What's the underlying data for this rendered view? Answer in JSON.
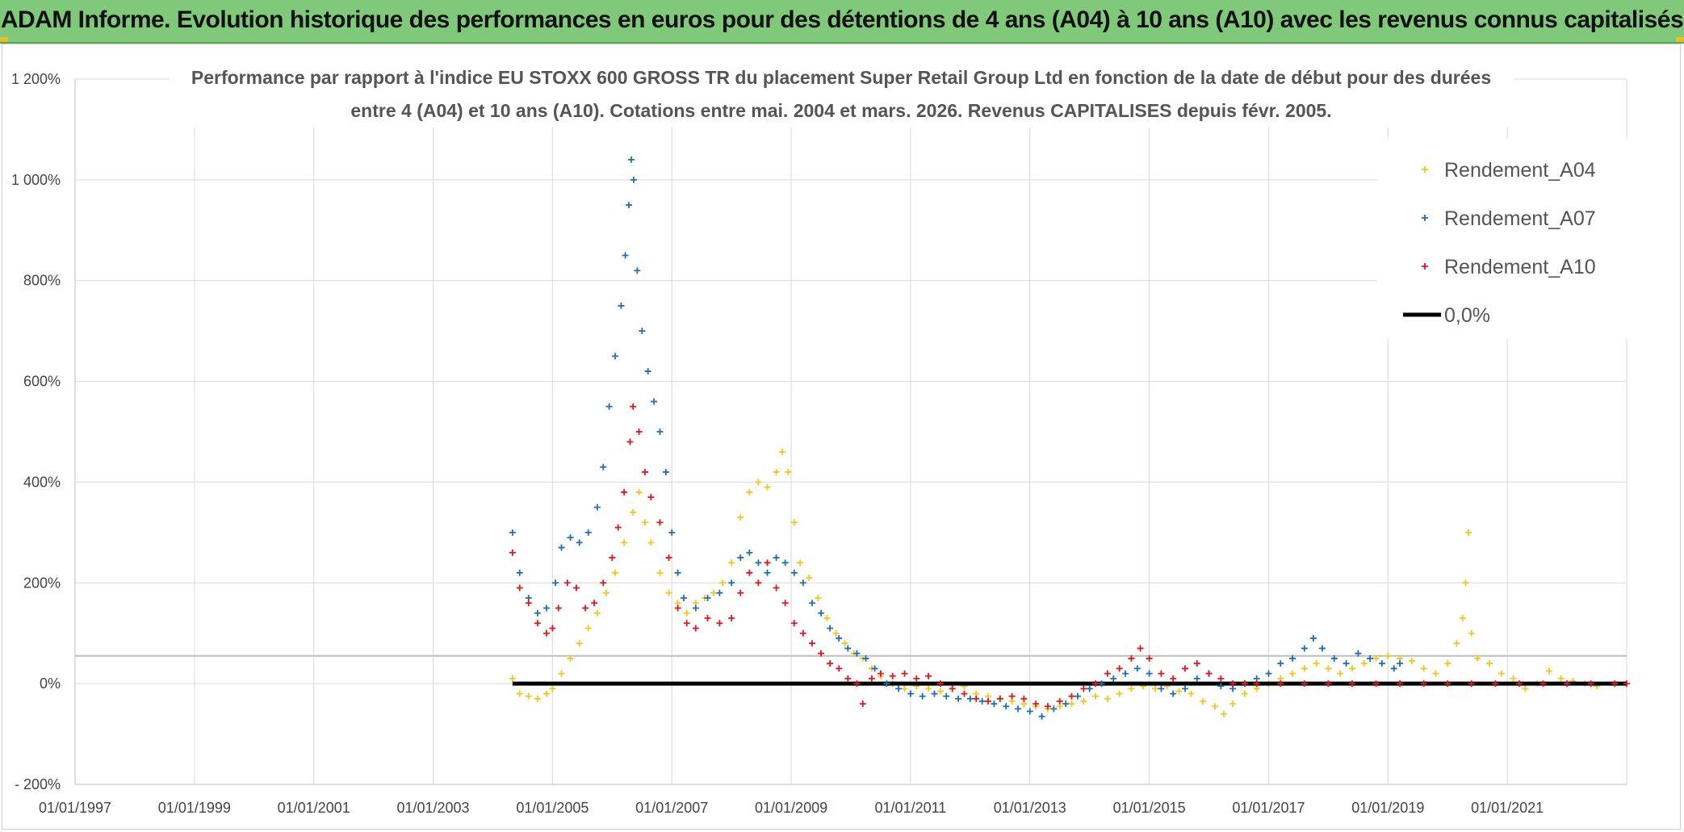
{
  "header": {
    "title": "ADAM Informe. Evolution historique des performances en euros pour des détentions de 4 ans (A04) à 10 ans (A10) avec les revenus connus capitalisés"
  },
  "chart_data": {
    "type": "scatter",
    "title_line1": "Performance par rapport à l'indice EU STOXX 600 GROSS TR  du placement Super Retail Group Ltd en fonction de la date de début pour des durées",
    "title_line2": "entre 4 (A04) et 10 ans (A10). Cotations entre mai. 2004 et mars. 2026. Revenus CAPITALISES depuis févr. 2005.",
    "xlim": [
      1997.0,
      2023.0
    ],
    "ylim": [
      -200,
      1200
    ],
    "y_ticks": [
      -200,
      0,
      200,
      400,
      600,
      800,
      1000,
      1200
    ],
    "y_tick_labels": [
      "- 200%",
      "0%",
      "200%",
      "400%",
      "600%",
      "800%",
      "1 000%",
      "1 200%"
    ],
    "x_ticks": [
      1997,
      1999,
      2001,
      2003,
      2005,
      2007,
      2009,
      2011,
      2013,
      2015,
      2017,
      2019,
      2021
    ],
    "x_tick_labels": [
      "01/01/1997",
      "01/01/1999",
      "01/01/2001",
      "01/01/2003",
      "01/01/2005",
      "01/01/2007",
      "01/01/2009",
      "01/01/2011",
      "01/01/2013",
      "01/01/2015",
      "01/01/2017",
      "01/01/2019",
      "01/01/2021"
    ],
    "extra_hline": 55,
    "grid": true,
    "legend_position": "top-right",
    "series": [
      {
        "name": "Rendement_A04",
        "color": "#f5c518",
        "marker": "+",
        "points": [
          [
            2004.33,
            10
          ],
          [
            2004.45,
            -20
          ],
          [
            2004.6,
            -25
          ],
          [
            2004.75,
            -30
          ],
          [
            2004.9,
            -20
          ],
          [
            2005.0,
            -10
          ],
          [
            2005.15,
            20
          ],
          [
            2005.3,
            50
          ],
          [
            2005.45,
            80
          ],
          [
            2005.6,
            110
          ],
          [
            2005.75,
            140
          ],
          [
            2005.9,
            180
          ],
          [
            2006.05,
            220
          ],
          [
            2006.2,
            280
          ],
          [
            2006.35,
            340
          ],
          [
            2006.45,
            380
          ],
          [
            2006.55,
            320
          ],
          [
            2006.65,
            280
          ],
          [
            2006.8,
            220
          ],
          [
            2006.95,
            180
          ],
          [
            2007.1,
            160
          ],
          [
            2007.25,
            140
          ],
          [
            2007.4,
            160
          ],
          [
            2007.55,
            170
          ],
          [
            2007.7,
            180
          ],
          [
            2007.85,
            200
          ],
          [
            2008.0,
            240
          ],
          [
            2008.15,
            330
          ],
          [
            2008.3,
            380
          ],
          [
            2008.45,
            400
          ],
          [
            2008.6,
            390
          ],
          [
            2008.75,
            420
          ],
          [
            2008.85,
            460
          ],
          [
            2008.95,
            420
          ],
          [
            2009.05,
            320
          ],
          [
            2009.15,
            240
          ],
          [
            2009.3,
            210
          ],
          [
            2009.45,
            170
          ],
          [
            2009.6,
            130
          ],
          [
            2009.75,
            100
          ],
          [
            2009.9,
            80
          ],
          [
            2010.05,
            60
          ],
          [
            2010.2,
            50
          ],
          [
            2010.35,
            30
          ],
          [
            2010.5,
            15
          ],
          [
            2010.7,
            0
          ],
          [
            2010.9,
            -10
          ],
          [
            2011.1,
            -5
          ],
          [
            2011.3,
            -10
          ],
          [
            2011.5,
            -15
          ],
          [
            2011.7,
            -10
          ],
          [
            2011.9,
            -5
          ],
          [
            2012.1,
            -20
          ],
          [
            2012.3,
            -25
          ],
          [
            2012.5,
            -30
          ],
          [
            2012.7,
            -35
          ],
          [
            2012.9,
            -40
          ],
          [
            2013.1,
            -45
          ],
          [
            2013.3,
            -50
          ],
          [
            2013.5,
            -45
          ],
          [
            2013.7,
            -40
          ],
          [
            2013.9,
            -35
          ],
          [
            2014.1,
            -25
          ],
          [
            2014.3,
            -30
          ],
          [
            2014.5,
            -20
          ],
          [
            2014.7,
            -10
          ],
          [
            2014.9,
            -5
          ],
          [
            2015.1,
            -10
          ],
          [
            2015.3,
            -5
          ],
          [
            2015.5,
            -15
          ],
          [
            2015.7,
            -20
          ],
          [
            2015.9,
            -35
          ],
          [
            2016.1,
            -45
          ],
          [
            2016.25,
            -60
          ],
          [
            2016.4,
            -40
          ],
          [
            2016.6,
            -20
          ],
          [
            2016.8,
            -10
          ],
          [
            2017.0,
            0
          ],
          [
            2017.2,
            10
          ],
          [
            2017.4,
            20
          ],
          [
            2017.6,
            30
          ],
          [
            2017.8,
            40
          ],
          [
            2018.0,
            30
          ],
          [
            2018.2,
            20
          ],
          [
            2018.4,
            30
          ],
          [
            2018.6,
            40
          ],
          [
            2018.8,
            50
          ],
          [
            2019.0,
            55
          ],
          [
            2019.2,
            50
          ],
          [
            2019.4,
            45
          ],
          [
            2019.6,
            30
          ],
          [
            2019.8,
            20
          ],
          [
            2020.0,
            40
          ],
          [
            2020.15,
            80
          ],
          [
            2020.25,
            130
          ],
          [
            2020.3,
            200
          ],
          [
            2020.35,
            300
          ],
          [
            2020.4,
            100
          ],
          [
            2020.5,
            50
          ],
          [
            2020.7,
            40
          ],
          [
            2020.9,
            20
          ],
          [
            2021.1,
            10
          ],
          [
            2021.3,
            -10
          ],
          [
            2021.5,
            0
          ],
          [
            2021.7,
            25
          ],
          [
            2021.9,
            10
          ],
          [
            2022.1,
            5
          ],
          [
            2022.3,
            0
          ],
          [
            2022.5,
            -5
          ]
        ]
      },
      {
        "name": "Rendement_A07",
        "color": "#1f6fb5",
        "marker": "+",
        "points": [
          [
            2004.33,
            300
          ],
          [
            2004.45,
            220
          ],
          [
            2004.6,
            170
          ],
          [
            2004.75,
            140
          ],
          [
            2004.9,
            150
          ],
          [
            2005.05,
            200
          ],
          [
            2005.15,
            270
          ],
          [
            2005.3,
            290
          ],
          [
            2005.45,
            280
          ],
          [
            2005.6,
            300
          ],
          [
            2005.75,
            350
          ],
          [
            2005.85,
            430
          ],
          [
            2005.95,
            550
          ],
          [
            2006.05,
            650
          ],
          [
            2006.15,
            750
          ],
          [
            2006.22,
            850
          ],
          [
            2006.28,
            950
          ],
          [
            2006.32,
            1040
          ],
          [
            2006.36,
            1000
          ],
          [
            2006.42,
            820
          ],
          [
            2006.5,
            700
          ],
          [
            2006.6,
            620
          ],
          [
            2006.7,
            560
          ],
          [
            2006.8,
            500
          ],
          [
            2006.9,
            420
          ],
          [
            2007.0,
            300
          ],
          [
            2007.1,
            220
          ],
          [
            2007.2,
            170
          ],
          [
            2007.4,
            150
          ],
          [
            2007.6,
            170
          ],
          [
            2007.8,
            180
          ],
          [
            2008.0,
            200
          ],
          [
            2008.15,
            250
          ],
          [
            2008.3,
            260
          ],
          [
            2008.45,
            240
          ],
          [
            2008.6,
            220
          ],
          [
            2008.75,
            250
          ],
          [
            2008.9,
            240
          ],
          [
            2009.05,
            220
          ],
          [
            2009.2,
            200
          ],
          [
            2009.35,
            160
          ],
          [
            2009.5,
            140
          ],
          [
            2009.65,
            110
          ],
          [
            2009.8,
            90
          ],
          [
            2009.95,
            70
          ],
          [
            2010.1,
            60
          ],
          [
            2010.25,
            50
          ],
          [
            2010.4,
            30
          ],
          [
            2010.6,
            0
          ],
          [
            2010.8,
            -10
          ],
          [
            2011.0,
            -20
          ],
          [
            2011.2,
            -25
          ],
          [
            2011.4,
            -20
          ],
          [
            2011.6,
            -25
          ],
          [
            2011.8,
            -30
          ],
          [
            2012.0,
            -30
          ],
          [
            2012.2,
            -35
          ],
          [
            2012.4,
            -40
          ],
          [
            2012.6,
            -45
          ],
          [
            2012.8,
            -50
          ],
          [
            2013.0,
            -55
          ],
          [
            2013.2,
            -65
          ],
          [
            2013.4,
            -50
          ],
          [
            2013.6,
            -40
          ],
          [
            2013.8,
            -25
          ],
          [
            2014.0,
            -10
          ],
          [
            2014.2,
            0
          ],
          [
            2014.4,
            10
          ],
          [
            2014.6,
            20
          ],
          [
            2014.8,
            30
          ],
          [
            2015.0,
            20
          ],
          [
            2015.2,
            -10
          ],
          [
            2015.4,
            -20
          ],
          [
            2015.6,
            -10
          ],
          [
            2015.8,
            10
          ],
          [
            2016.0,
            20
          ],
          [
            2016.2,
            -5
          ],
          [
            2016.4,
            -10
          ],
          [
            2016.6,
            0
          ],
          [
            2016.8,
            10
          ],
          [
            2017.0,
            20
          ],
          [
            2017.2,
            40
          ],
          [
            2017.4,
            50
          ],
          [
            2017.6,
            70
          ],
          [
            2017.75,
            90
          ],
          [
            2017.9,
            70
          ],
          [
            2018.1,
            50
          ],
          [
            2018.3,
            40
          ],
          [
            2018.5,
            60
          ],
          [
            2018.7,
            50
          ],
          [
            2018.9,
            40
          ],
          [
            2019.1,
            30
          ],
          [
            2019.2,
            40
          ]
        ]
      },
      {
        "name": "Rendement_A10",
        "color": "#e8141c",
        "marker": "+",
        "points": [
          [
            2004.33,
            260
          ],
          [
            2004.45,
            190
          ],
          [
            2004.6,
            160
          ],
          [
            2004.75,
            120
          ],
          [
            2004.9,
            100
          ],
          [
            2005.0,
            110
          ],
          [
            2005.1,
            150
          ],
          [
            2005.25,
            200
          ],
          [
            2005.4,
            190
          ],
          [
            2005.55,
            150
          ],
          [
            2005.7,
            160
          ],
          [
            2005.85,
            200
          ],
          [
            2006.0,
            250
          ],
          [
            2006.1,
            310
          ],
          [
            2006.2,
            380
          ],
          [
            2006.3,
            480
          ],
          [
            2006.35,
            550
          ],
          [
            2006.45,
            500
          ],
          [
            2006.55,
            420
          ],
          [
            2006.65,
            370
          ],
          [
            2006.8,
            320
          ],
          [
            2006.95,
            250
          ],
          [
            2007.1,
            150
          ],
          [
            2007.25,
            120
          ],
          [
            2007.4,
            110
          ],
          [
            2007.6,
            130
          ],
          [
            2007.8,
            120
          ],
          [
            2008.0,
            130
          ],
          [
            2008.15,
            180
          ],
          [
            2008.3,
            220
          ],
          [
            2008.45,
            200
          ],
          [
            2008.6,
            240
          ],
          [
            2008.75,
            190
          ],
          [
            2008.9,
            160
          ],
          [
            2009.05,
            120
          ],
          [
            2009.2,
            100
          ],
          [
            2009.35,
            80
          ],
          [
            2009.5,
            60
          ],
          [
            2009.65,
            40
          ],
          [
            2009.8,
            30
          ],
          [
            2009.95,
            10
          ],
          [
            2010.1,
            0
          ],
          [
            2010.2,
            -40
          ],
          [
            2010.35,
            10
          ],
          [
            2010.5,
            20
          ],
          [
            2010.7,
            15
          ],
          [
            2010.9,
            20
          ],
          [
            2011.1,
            10
          ],
          [
            2011.3,
            15
          ],
          [
            2011.5,
            0
          ],
          [
            2011.7,
            -10
          ],
          [
            2011.9,
            -20
          ],
          [
            2012.1,
            -30
          ],
          [
            2012.3,
            -35
          ],
          [
            2012.5,
            -30
          ],
          [
            2012.7,
            -25
          ],
          [
            2012.9,
            -30
          ],
          [
            2013.1,
            -40
          ],
          [
            2013.3,
            -45
          ],
          [
            2013.5,
            -35
          ],
          [
            2013.7,
            -25
          ],
          [
            2013.9,
            -10
          ],
          [
            2014.1,
            0
          ],
          [
            2014.3,
            20
          ],
          [
            2014.5,
            30
          ],
          [
            2014.7,
            50
          ],
          [
            2014.85,
            70
          ],
          [
            2015.0,
            50
          ],
          [
            2015.2,
            20
          ],
          [
            2015.4,
            10
          ],
          [
            2015.6,
            30
          ],
          [
            2015.8,
            40
          ],
          [
            2016.0,
            20
          ],
          [
            2016.2,
            10
          ],
          [
            2016.4,
            0
          ],
          [
            2016.6,
            0
          ],
          [
            2016.8,
            0
          ],
          [
            2017.2,
            0
          ],
          [
            2017.6,
            0
          ],
          [
            2018.0,
            0
          ],
          [
            2018.4,
            0
          ],
          [
            2018.8,
            0
          ],
          [
            2019.2,
            0
          ],
          [
            2019.6,
            0
          ],
          [
            2020.0,
            0
          ],
          [
            2020.4,
            0
          ],
          [
            2020.8,
            0
          ],
          [
            2021.2,
            0
          ],
          [
            2021.6,
            0
          ],
          [
            2022.0,
            0
          ],
          [
            2022.4,
            0
          ],
          [
            2022.8,
            0
          ],
          [
            2023.0,
            0
          ]
        ]
      }
    ],
    "reference_line": {
      "name": "0,0%",
      "color": "#000000",
      "x": [
        2004.33,
        2023.0
      ],
      "y": 0
    }
  }
}
